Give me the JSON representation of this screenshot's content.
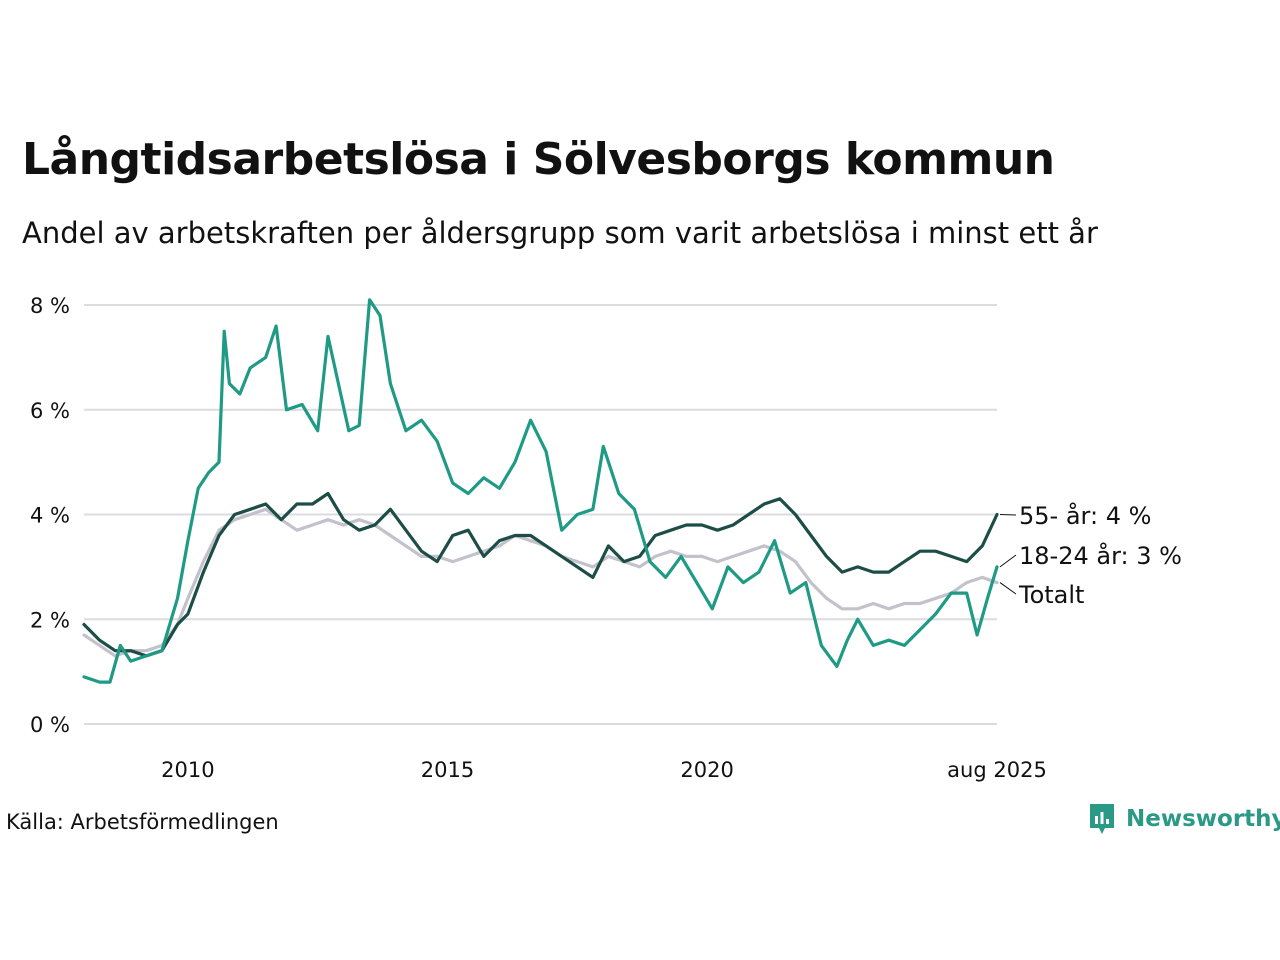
{
  "title": "Långtidsarbetslösa i Sölvesborgs kommun",
  "subtitle": "Andel av arbetskraften per åldersgrupp som varit arbetslösa i minst ett år",
  "source": "Källa: Arbetsförmedlingen",
  "brand": {
    "name": "Newsworthy",
    "icon": "newsworthy-logo-icon",
    "color": "#2a9a86"
  },
  "chart_data": {
    "type": "line",
    "x_ticks": [
      {
        "x": 2010.0,
        "label": "2010"
      },
      {
        "x": 2015.0,
        "label": "2015"
      },
      {
        "x": 2020.0,
        "label": "2020"
      },
      {
        "x": 2025.583,
        "label": "aug 2025"
      }
    ],
    "y_ticks": [
      {
        "y": 0,
        "label": "0 %"
      },
      {
        "y": 2,
        "label": "2 %"
      },
      {
        "y": 4,
        "label": "4 %"
      },
      {
        "y": 6,
        "label": "6 %"
      },
      {
        "y": 8,
        "label": "8 %"
      }
    ],
    "xlim": [
      2008.0,
      2025.583
    ],
    "ylim": [
      0,
      8
    ],
    "grid": true,
    "series": [
      {
        "key": "total",
        "color": "#c3c1cc",
        "end_label": "Totalt",
        "points": [
          [
            2008.0,
            1.7
          ],
          [
            2008.3,
            1.5
          ],
          [
            2008.6,
            1.3
          ],
          [
            2008.9,
            1.4
          ],
          [
            2009.2,
            1.4
          ],
          [
            2009.5,
            1.5
          ],
          [
            2009.8,
            1.9
          ],
          [
            2010.0,
            2.4
          ],
          [
            2010.3,
            3.1
          ],
          [
            2010.6,
            3.7
          ],
          [
            2010.9,
            3.9
          ],
          [
            2011.2,
            4.0
          ],
          [
            2011.5,
            4.1
          ],
          [
            2011.8,
            3.9
          ],
          [
            2012.1,
            3.7
          ],
          [
            2012.4,
            3.8
          ],
          [
            2012.7,
            3.9
          ],
          [
            2013.0,
            3.8
          ],
          [
            2013.3,
            3.9
          ],
          [
            2013.6,
            3.8
          ],
          [
            2013.9,
            3.6
          ],
          [
            2014.2,
            3.4
          ],
          [
            2014.5,
            3.2
          ],
          [
            2014.8,
            3.2
          ],
          [
            2015.1,
            3.1
          ],
          [
            2015.4,
            3.2
          ],
          [
            2015.7,
            3.3
          ],
          [
            2016.0,
            3.4
          ],
          [
            2016.3,
            3.6
          ],
          [
            2016.6,
            3.5
          ],
          [
            2016.9,
            3.4
          ],
          [
            2017.2,
            3.2
          ],
          [
            2017.5,
            3.1
          ],
          [
            2017.8,
            3.0
          ],
          [
            2018.1,
            3.2
          ],
          [
            2018.4,
            3.1
          ],
          [
            2018.7,
            3.0
          ],
          [
            2019.0,
            3.2
          ],
          [
            2019.3,
            3.3
          ],
          [
            2019.6,
            3.2
          ],
          [
            2019.9,
            3.2
          ],
          [
            2020.2,
            3.1
          ],
          [
            2020.5,
            3.2
          ],
          [
            2020.8,
            3.3
          ],
          [
            2021.1,
            3.4
          ],
          [
            2021.4,
            3.3
          ],
          [
            2021.7,
            3.1
          ],
          [
            2022.0,
            2.7
          ],
          [
            2022.3,
            2.4
          ],
          [
            2022.6,
            2.2
          ],
          [
            2022.9,
            2.2
          ],
          [
            2023.2,
            2.3
          ],
          [
            2023.5,
            2.2
          ],
          [
            2023.8,
            2.3
          ],
          [
            2024.1,
            2.3
          ],
          [
            2024.4,
            2.4
          ],
          [
            2024.7,
            2.5
          ],
          [
            2025.0,
            2.7
          ],
          [
            2025.3,
            2.8
          ],
          [
            2025.583,
            2.7
          ]
        ]
      },
      {
        "key": "age_55",
        "color": "#1d4d47",
        "end_label": "55- år: 4 %",
        "points": [
          [
            2008.0,
            1.9
          ],
          [
            2008.3,
            1.6
          ],
          [
            2008.6,
            1.4
          ],
          [
            2008.9,
            1.4
          ],
          [
            2009.2,
            1.3
          ],
          [
            2009.5,
            1.4
          ],
          [
            2009.8,
            1.9
          ],
          [
            2010.0,
            2.1
          ],
          [
            2010.3,
            2.9
          ],
          [
            2010.6,
            3.6
          ],
          [
            2010.9,
            4.0
          ],
          [
            2011.2,
            4.1
          ],
          [
            2011.5,
            4.2
          ],
          [
            2011.8,
            3.9
          ],
          [
            2012.1,
            4.2
          ],
          [
            2012.4,
            4.2
          ],
          [
            2012.7,
            4.4
          ],
          [
            2013.0,
            3.9
          ],
          [
            2013.3,
            3.7
          ],
          [
            2013.6,
            3.8
          ],
          [
            2013.9,
            4.1
          ],
          [
            2014.2,
            3.7
          ],
          [
            2014.5,
            3.3
          ],
          [
            2014.8,
            3.1
          ],
          [
            2015.1,
            3.6
          ],
          [
            2015.4,
            3.7
          ],
          [
            2015.7,
            3.2
          ],
          [
            2016.0,
            3.5
          ],
          [
            2016.3,
            3.6
          ],
          [
            2016.6,
            3.6
          ],
          [
            2016.9,
            3.4
          ],
          [
            2017.2,
            3.2
          ],
          [
            2017.5,
            3.0
          ],
          [
            2017.8,
            2.8
          ],
          [
            2018.1,
            3.4
          ],
          [
            2018.4,
            3.1
          ],
          [
            2018.7,
            3.2
          ],
          [
            2019.0,
            3.6
          ],
          [
            2019.3,
            3.7
          ],
          [
            2019.6,
            3.8
          ],
          [
            2019.9,
            3.8
          ],
          [
            2020.2,
            3.7
          ],
          [
            2020.5,
            3.8
          ],
          [
            2020.8,
            4.0
          ],
          [
            2021.1,
            4.2
          ],
          [
            2021.4,
            4.3
          ],
          [
            2021.7,
            4.0
          ],
          [
            2022.0,
            3.6
          ],
          [
            2022.3,
            3.2
          ],
          [
            2022.6,
            2.9
          ],
          [
            2022.9,
            3.0
          ],
          [
            2023.2,
            2.9
          ],
          [
            2023.5,
            2.9
          ],
          [
            2023.8,
            3.1
          ],
          [
            2024.1,
            3.3
          ],
          [
            2024.4,
            3.3
          ],
          [
            2024.7,
            3.2
          ],
          [
            2025.0,
            3.1
          ],
          [
            2025.3,
            3.4
          ],
          [
            2025.583,
            4.0
          ]
        ]
      },
      {
        "key": "age_18_24",
        "color": "#1e9a85",
        "end_label": "18-24 år: 3 %",
        "points": [
          [
            2008.0,
            0.9
          ],
          [
            2008.3,
            0.8
          ],
          [
            2008.5,
            0.8
          ],
          [
            2008.7,
            1.5
          ],
          [
            2008.9,
            1.2
          ],
          [
            2009.2,
            1.3
          ],
          [
            2009.5,
            1.4
          ],
          [
            2009.8,
            2.4
          ],
          [
            2010.0,
            3.5
          ],
          [
            2010.2,
            4.5
          ],
          [
            2010.4,
            4.8
          ],
          [
            2010.6,
            5.0
          ],
          [
            2010.7,
            7.5
          ],
          [
            2010.8,
            6.5
          ],
          [
            2011.0,
            6.3
          ],
          [
            2011.2,
            6.8
          ],
          [
            2011.5,
            7.0
          ],
          [
            2011.7,
            7.6
          ],
          [
            2011.9,
            6.0
          ],
          [
            2012.2,
            6.1
          ],
          [
            2012.5,
            5.6
          ],
          [
            2012.7,
            7.4
          ],
          [
            2012.9,
            6.5
          ],
          [
            2013.1,
            5.6
          ],
          [
            2013.3,
            5.7
          ],
          [
            2013.5,
            8.1
          ],
          [
            2013.7,
            7.8
          ],
          [
            2013.9,
            6.5
          ],
          [
            2014.2,
            5.6
          ],
          [
            2014.5,
            5.8
          ],
          [
            2014.8,
            5.4
          ],
          [
            2015.1,
            4.6
          ],
          [
            2015.4,
            4.4
          ],
          [
            2015.7,
            4.7
          ],
          [
            2016.0,
            4.5
          ],
          [
            2016.3,
            5.0
          ],
          [
            2016.6,
            5.8
          ],
          [
            2016.9,
            5.2
          ],
          [
            2017.2,
            3.7
          ],
          [
            2017.5,
            4.0
          ],
          [
            2017.8,
            4.1
          ],
          [
            2018.0,
            5.3
          ],
          [
            2018.3,
            4.4
          ],
          [
            2018.6,
            4.1
          ],
          [
            2018.9,
            3.1
          ],
          [
            2019.2,
            2.8
          ],
          [
            2019.5,
            3.2
          ],
          [
            2019.8,
            2.7
          ],
          [
            2020.1,
            2.2
          ],
          [
            2020.4,
            3.0
          ],
          [
            2020.7,
            2.7
          ],
          [
            2021.0,
            2.9
          ],
          [
            2021.3,
            3.5
          ],
          [
            2021.6,
            2.5
          ],
          [
            2021.9,
            2.7
          ],
          [
            2022.2,
            1.5
          ],
          [
            2022.5,
            1.1
          ],
          [
            2022.7,
            1.6
          ],
          [
            2022.9,
            2.0
          ],
          [
            2023.2,
            1.5
          ],
          [
            2023.5,
            1.6
          ],
          [
            2023.8,
            1.5
          ],
          [
            2024.1,
            1.8
          ],
          [
            2024.4,
            2.1
          ],
          [
            2024.7,
            2.5
          ],
          [
            2025.0,
            2.5
          ],
          [
            2025.2,
            1.7
          ],
          [
            2025.4,
            2.4
          ],
          [
            2025.583,
            3.0
          ]
        ]
      }
    ]
  }
}
